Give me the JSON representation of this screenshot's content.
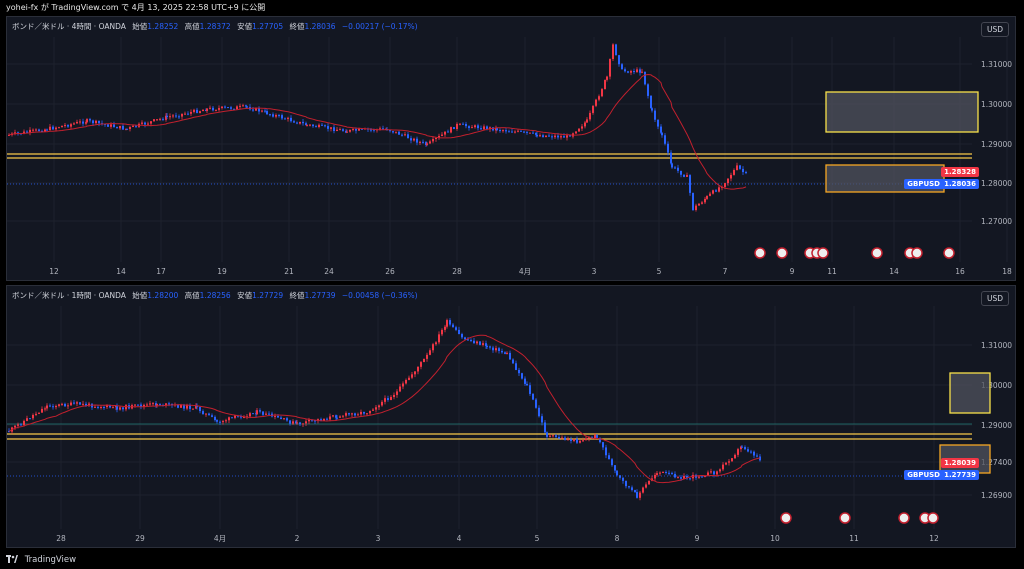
{
  "header": {
    "text": "yohei-fx が TradingView.com で 4月 13, 2025 22:58 UTC+9 に公開"
  },
  "footer": {
    "brand": "TradingView"
  },
  "colors": {
    "up": "#f23645",
    "down": "#2962ff",
    "ma": "#c2202e",
    "level": "#f7c948",
    "zone_top": "#f7e04a",
    "zone_bottom": "#f5a623",
    "bg": "#131722"
  },
  "charts": [
    {
      "id": "4h",
      "symbol": "ボンド／米ドル · 4時間 · OANDA",
      "open_label": "始値",
      "open": "1.28252",
      "high_label": "高値",
      "high": "1.28372",
      "low_label": "安値",
      "low": "1.27705",
      "close_label": "終値",
      "close": "1.28036",
      "change": "−0.00217 (−0.17%)",
      "currency": "USD",
      "price_ticks": [
        "1.31000",
        "1.30000",
        "1.29000",
        "1.28000",
        "1.27000"
      ],
      "time_ticks": [
        "12",
        "14",
        "17",
        "19",
        "21",
        "24",
        "26",
        "28",
        "4月",
        "3",
        "5",
        "7",
        "9",
        "11",
        "14",
        "16",
        "18"
      ],
      "tag_level": "1.28328",
      "tag_symbol": "GBPUSD",
      "tag_price": "1.28036"
    },
    {
      "id": "1h",
      "symbol": "ボンド／米ドル · 1時間 · OANDA",
      "open_label": "始値",
      "open": "1.28200",
      "high_label": "高値",
      "high": "1.28256",
      "low_label": "安値",
      "low": "1.27729",
      "close_label": "終値",
      "close": "1.27739",
      "change": "−0.00458 (−0.36%)",
      "currency": "USD",
      "price_ticks": [
        "1.31000",
        "1.30000",
        "1.29000",
        "1.27400",
        "1.26900"
      ],
      "time_ticks": [
        "28",
        "29",
        "4月",
        "2",
        "3",
        "4",
        "5",
        "8",
        "9",
        "10",
        "11",
        "12"
      ],
      "tag_level": "1.28039",
      "tag_symbol": "GBPUSD",
      "tag_price": "1.27739"
    }
  ]
}
